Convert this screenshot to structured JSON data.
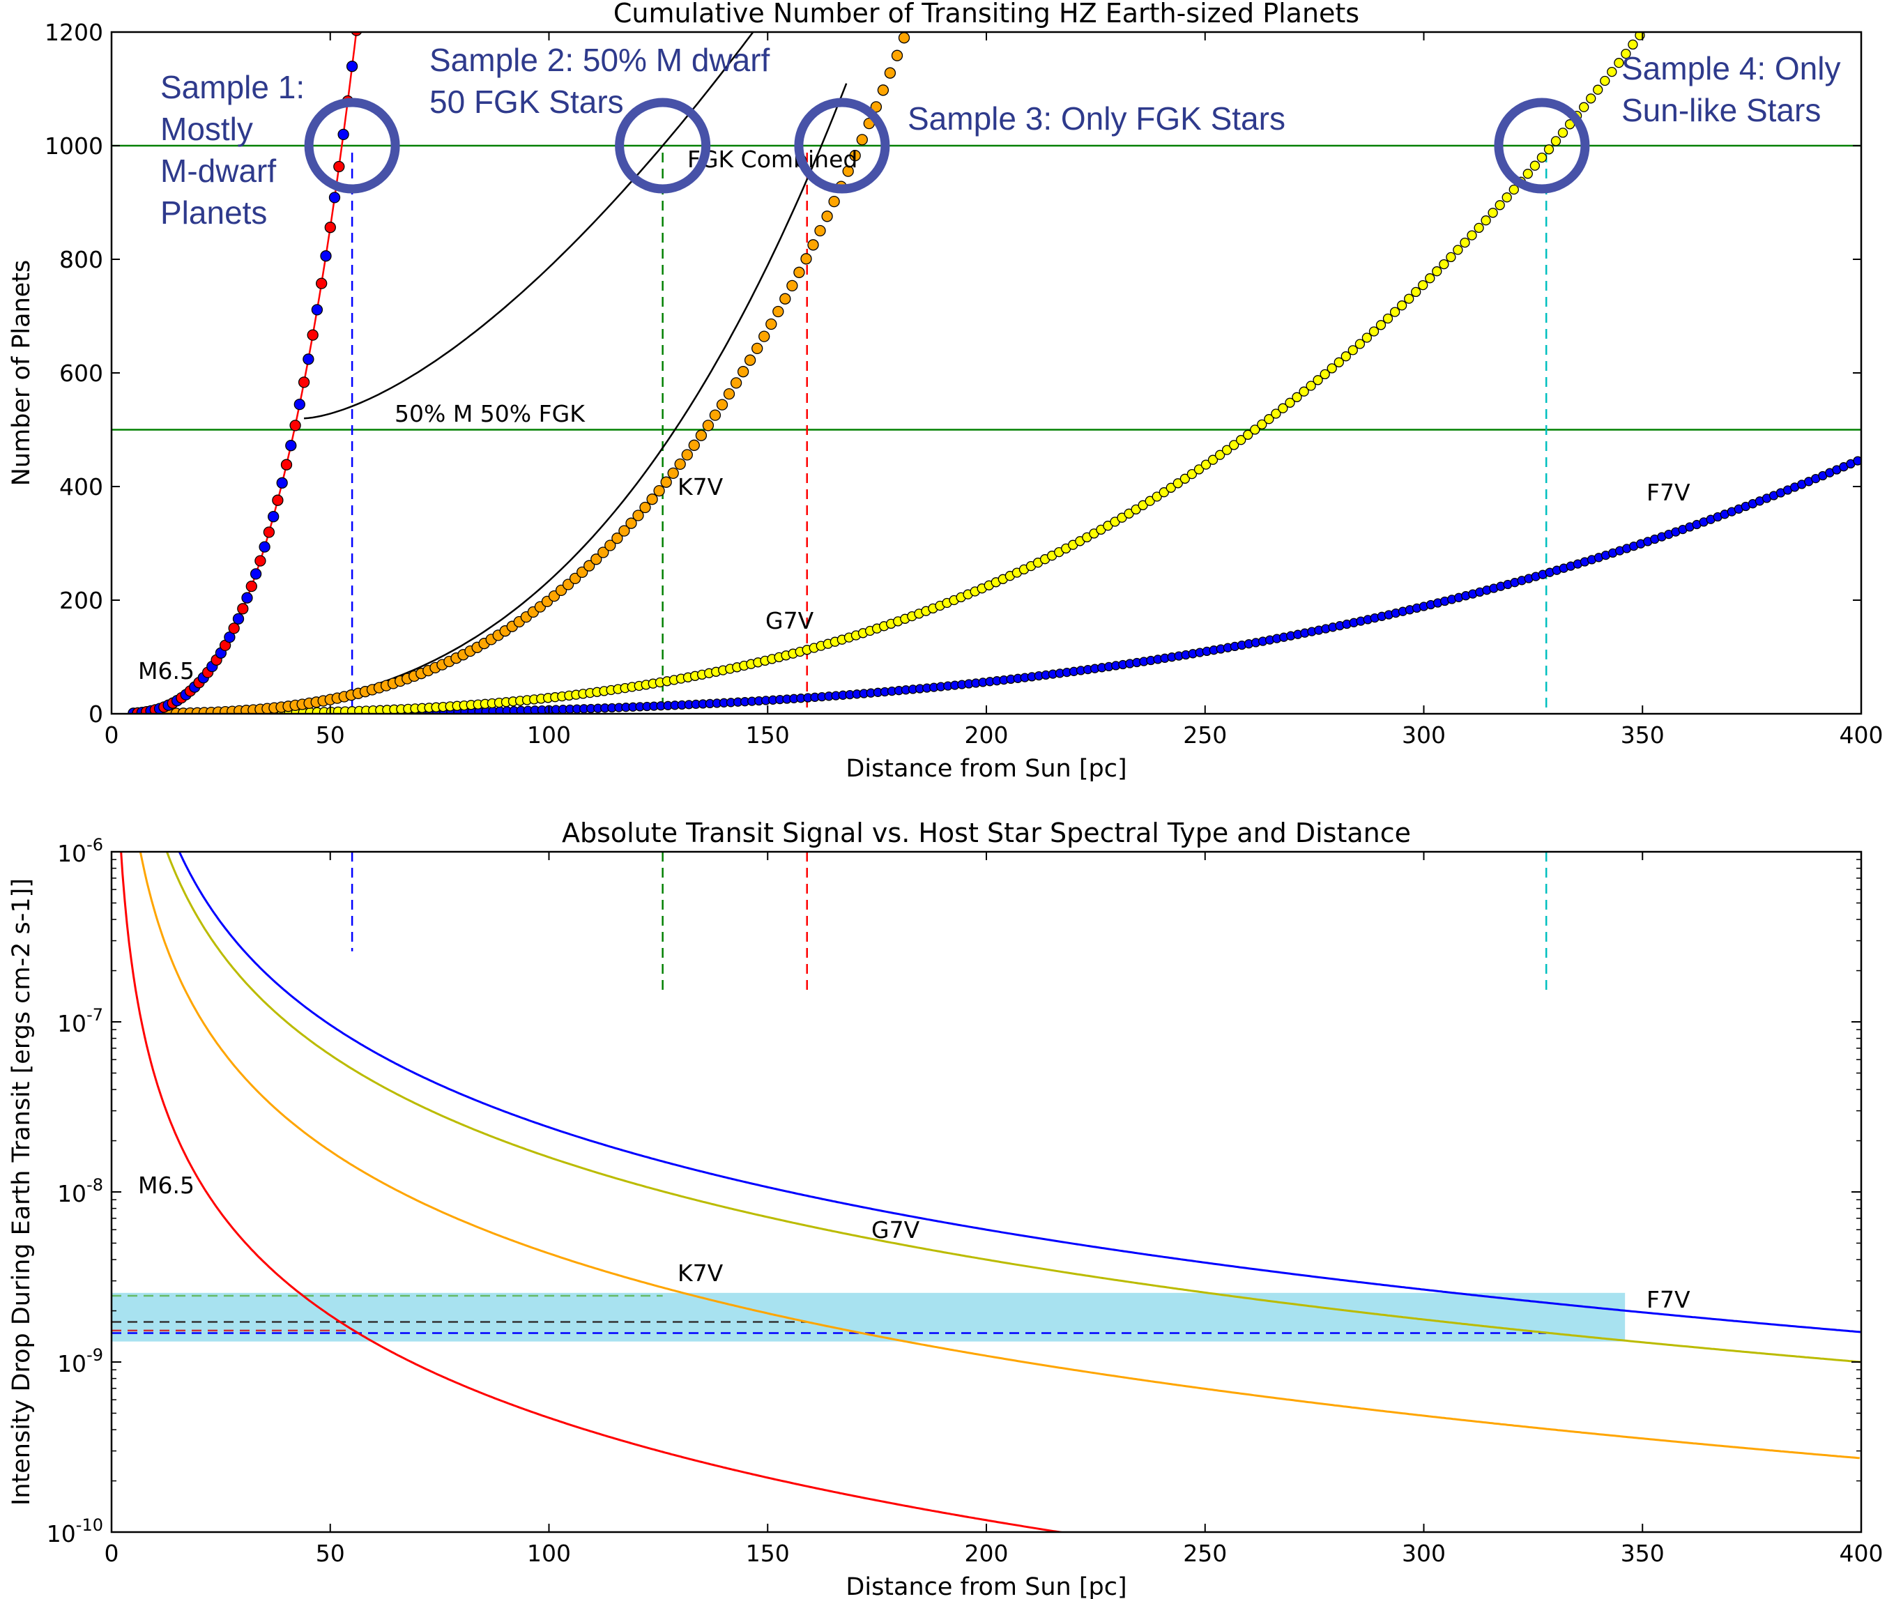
{
  "colors": {
    "m_star": "#ff0000",
    "k_star": "#ffa500",
    "g_star": "#bbbb00",
    "f_star": "#0000ff",
    "threshold": "#008000",
    "circle": "#4752a8",
    "band": "#a8e2f0",
    "vline_m": "#0000ff",
    "vline_fgk": "#008000",
    "vline_k": "#ff0000",
    "vline_g": "#00bfbf"
  },
  "chart_data": [
    {
      "type": "scatter",
      "title": "Cumulative Number of Transiting HZ Earth-sized Planets",
      "xlabel": "Distance from Sun [pc]",
      "ylabel": "Number of Planets",
      "xlim": [
        0,
        400
      ],
      "ylim": [
        0,
        1200
      ],
      "xticks": [
        "0",
        "50",
        "100",
        "150",
        "200",
        "250",
        "300",
        "350",
        "400"
      ],
      "yticks": [
        "0",
        "200",
        "400",
        "600",
        "800",
        "1000",
        "1200"
      ],
      "series": [
        {
          "name": "M6.5",
          "label": "M6.5",
          "color": "#0000ff",
          "marker_fill": "#0000ff",
          "alt_fill": "#ff0000",
          "model": "0.00685*d^3",
          "x_start": 5,
          "x_end": 58
        },
        {
          "name": "K7V",
          "label": "K7V",
          "color": "#ffa500",
          "marker_fill": "#ffa500",
          "model": "2e-4*d^3",
          "x_start": 10,
          "x_end": 180
        },
        {
          "name": "G7V",
          "label": "G7V",
          "color": "#ffff00",
          "marker_fill": "#ffff00",
          "model": "2.8e-5*d^3",
          "x_start": 15,
          "x_end": 360
        },
        {
          "name": "F7V",
          "label": "F7V",
          "color": "#0000ff",
          "marker_fill": "#0000ff",
          "model": "7e-6*d^3",
          "x_start": 20,
          "x_end": 400
        }
      ],
      "combined_curves": [
        {
          "name": "50% M 50% FGK",
          "label": "50% M 50% FGK",
          "model": "blend",
          "x_start": 44,
          "x_end": 168
        },
        {
          "name": "FGK Combined",
          "label": "FGK Combined",
          "model": "2.34e-4*d^3",
          "x_start": 30,
          "x_end": 168
        }
      ],
      "hlines": [
        1000,
        500
      ],
      "vlines": [
        55,
        126,
        159,
        328
      ],
      "circles": [
        {
          "x": 55,
          "y": 1000
        },
        {
          "x": 126,
          "y": 1000
        },
        {
          "x": 167,
          "y": 1000
        },
        {
          "x": 327,
          "y": 1000
        }
      ],
      "sample_annotations": [
        {
          "lines": [
            "Sample 1:",
            "Mostly",
            "M-dwarf",
            "Planets"
          ]
        },
        {
          "lines": [
            "Sample 2: 50% M dwarf",
            "50 FGK Stars"
          ]
        },
        {
          "lines": [
            "Sample 3: Only FGK Stars"
          ]
        },
        {
          "lines": [
            "Sample 4: Only",
            "Sun-like Stars"
          ]
        }
      ]
    },
    {
      "type": "line",
      "title": "Absolute Transit Signal vs. Host Star Spectral Type and Distance",
      "xlabel": "Distance from Sun [pc]",
      "ylabel": "Intensity Drop During Earth Transit [ergs cm-2 s-1]]",
      "xlim": [
        0,
        400
      ],
      "ylim": [
        1e-10,
        1e-06
      ],
      "yscale": "log",
      "xticks": [
        "0",
        "50",
        "100",
        "150",
        "200",
        "250",
        "300",
        "350",
        "400"
      ],
      "yticks": [
        {
          "base": "10",
          "exp": "-10"
        },
        {
          "base": "10",
          "exp": "-9"
        },
        {
          "base": "10",
          "exp": "-8"
        },
        {
          "base": "10",
          "exp": "-7"
        },
        {
          "base": "10",
          "exp": "-6"
        }
      ],
      "series": [
        {
          "name": "M6.5",
          "label": "M6.5",
          "color": "#ff0000",
          "k": 4.7e-06
        },
        {
          "name": "K7V",
          "label": "K7V",
          "color": "#ffa500",
          "k": 4.35e-05
        },
        {
          "name": "G7V",
          "label": "G7V",
          "color": "#bbbb00",
          "k": 0.00016
        },
        {
          "name": "F7V",
          "label": "F7V",
          "color": "#0000ff",
          "k": 0.00024
        }
      ],
      "band": {
        "x": [
          0,
          346
        ],
        "y": [
          1.32e-09,
          2.55e-09
        ]
      },
      "hlines_dashed": [
        {
          "y": 2.45e-09,
          "x_end": 126,
          "color": "#66bb66"
        },
        {
          "y": 1.72e-09,
          "x_end": 159,
          "color": "#333333"
        },
        {
          "y": 1.53e-09,
          "x_end": 55,
          "color": "#cc3333"
        },
        {
          "y": 1.48e-09,
          "x_end": 328,
          "color": "#0000ff"
        }
      ],
      "vlines_dashed": [
        {
          "x": 55,
          "y_low": 2.6e-07,
          "color": "#0000ff"
        },
        {
          "x": 126,
          "y_low": 1.45e-07,
          "color": "#008000"
        },
        {
          "x": 159,
          "y_low": 1.45e-07,
          "color": "#ff0000"
        },
        {
          "x": 328,
          "y_low": 1.45e-07,
          "color": "#00bfbf"
        }
      ]
    }
  ]
}
